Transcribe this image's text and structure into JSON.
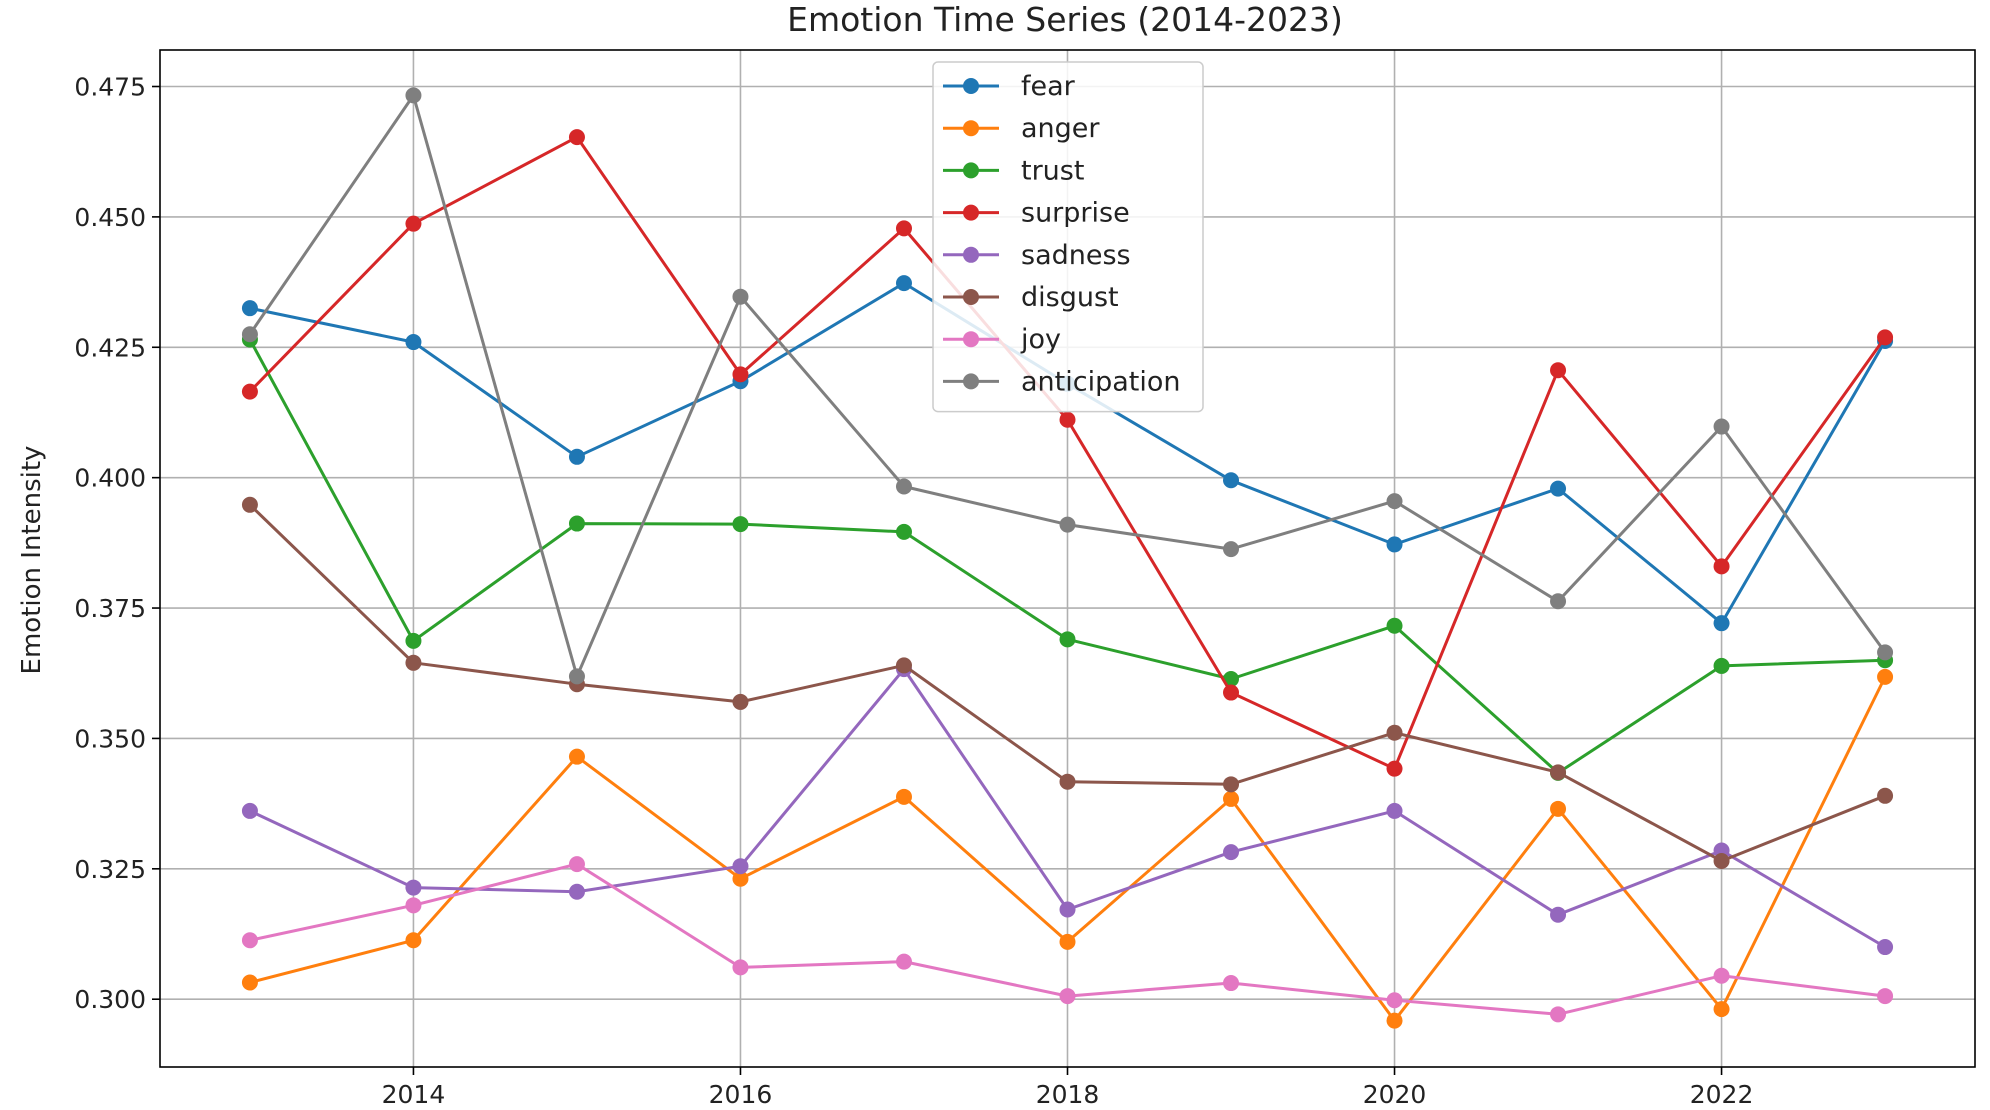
{
  "chart_data": {
    "type": "line",
    "title": "Emotion Time Series (2014-2023)",
    "xlabel": "",
    "ylabel": "Emotion Intensity",
    "x": [
      2013,
      2014,
      2015,
      2016,
      2017,
      2018,
      2019,
      2020,
      2021,
      2022,
      2023
    ],
    "xlim": [
      2012.45,
      2023.55
    ],
    "ylim": [
      0.287,
      0.482
    ],
    "x_ticks": [
      2014,
      2016,
      2018,
      2020,
      2022
    ],
    "y_ticks": [
      0.3,
      0.325,
      0.35,
      0.375,
      0.4,
      0.425,
      0.45,
      0.475
    ],
    "y_tick_labels": [
      "0.300",
      "0.325",
      "0.350",
      "0.375",
      "0.400",
      "0.425",
      "0.450",
      "0.475"
    ],
    "grid": true,
    "legend_position": "top-center",
    "series": [
      {
        "name": "fear",
        "color": "#1f77b4",
        "values": [
          0.4325,
          0.426,
          0.404,
          0.4185,
          0.4373,
          0.418,
          0.3995,
          0.3872,
          0.3979,
          0.3721,
          0.4262
        ]
      },
      {
        "name": "anger",
        "color": "#ff7f0e",
        "values": [
          0.3032,
          0.3113,
          0.3465,
          0.3231,
          0.3388,
          0.311,
          0.3384,
          0.2959,
          0.3365,
          0.2981,
          0.3618
        ]
      },
      {
        "name": "trust",
        "color": "#2ca02c",
        "values": [
          0.4265,
          0.3687,
          0.3912,
          0.3911,
          0.3896,
          0.369,
          0.3614,
          0.3716,
          0.3434,
          0.3639,
          0.365
        ]
      },
      {
        "name": "surprise",
        "color": "#d62728",
        "values": [
          0.4165,
          0.4487,
          0.4653,
          0.4198,
          0.4478,
          0.4111,
          0.3588,
          0.3442,
          0.4206,
          0.383,
          0.4269
        ]
      },
      {
        "name": "sadness",
        "color": "#9467bd",
        "values": [
          0.3361,
          0.3214,
          0.3206,
          0.3255,
          0.3633,
          0.3172,
          0.3282,
          0.3361,
          0.3162,
          0.3285,
          0.31
        ]
      },
      {
        "name": "disgust",
        "color": "#8c564b",
        "values": [
          0.3948,
          0.3645,
          0.3604,
          0.357,
          0.364,
          0.3417,
          0.3412,
          0.3511,
          0.3435,
          0.3265,
          0.339
        ]
      },
      {
        "name": "joy",
        "color": "#e377c2",
        "values": [
          0.3113,
          0.318,
          0.3259,
          0.3061,
          0.3072,
          0.3006,
          0.3031,
          0.2998,
          0.2971,
          0.3045,
          0.3006
        ]
      },
      {
        "name": "anticipation",
        "color": "#7f7f7f",
        "values": [
          0.4275,
          0.4733,
          0.3619,
          0.4347,
          0.3983,
          0.391,
          0.3863,
          0.3955,
          0.3763,
          0.4098,
          0.3665
        ]
      }
    ]
  }
}
